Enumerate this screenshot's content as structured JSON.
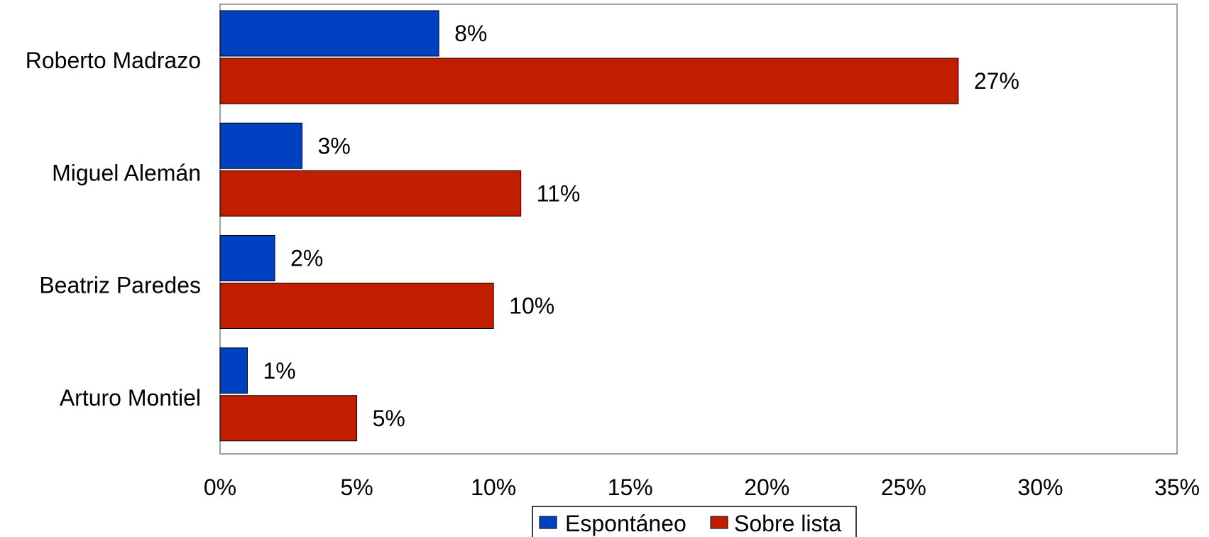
{
  "chart_data": {
    "type": "bar",
    "orientation": "horizontal",
    "categories": [
      "Roberto Madrazo",
      "Miguel Alemán",
      "Beatriz Paredes",
      "Arturo Montiel"
    ],
    "series": [
      {
        "name": "Espontáneo",
        "color": "#0041C2",
        "values": [
          8,
          3,
          2,
          1
        ],
        "labels": [
          "8%",
          "3%",
          "2%",
          "1%"
        ]
      },
      {
        "name": "Sobre lista",
        "color": "#C11E00",
        "values": [
          27,
          11,
          10,
          5
        ],
        "labels": [
          "27%",
          "11%",
          "10%",
          "5%"
        ]
      }
    ],
    "xlim": [
      0,
      35
    ],
    "x_ticks": [
      0,
      5,
      10,
      15,
      20,
      25,
      30,
      35
    ],
    "x_tick_labels": [
      "0%",
      "5%",
      "10%",
      "15%",
      "20%",
      "25%",
      "30%",
      "35%"
    ],
    "legend_position": "bottom",
    "grid": false
  }
}
